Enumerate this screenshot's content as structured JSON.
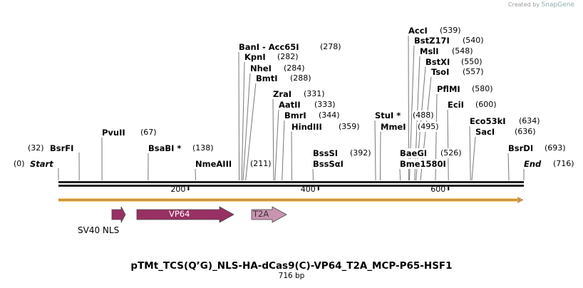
{
  "credit": {
    "prefix": "Created by",
    "brand": "SnapGene"
  },
  "title": "pTMt_TCS(Q’G)_NLS-HA-dCas9(C)-VP64_T2A_MCP-P65-HSF1",
  "size": "716 bp",
  "length": 716,
  "ticks": [
    {
      "pos": 200,
      "label": "200"
    },
    {
      "pos": 400,
      "label": "400"
    },
    {
      "pos": 600,
      "label": "600"
    }
  ],
  "sites": [
    {
      "name": "Start",
      "pos": 0,
      "num": "(0)"
    },
    {
      "name": "BsrFI",
      "pos": 32,
      "num": "(32)"
    },
    {
      "name": "PvuII",
      "pos": 67,
      "num": "(67)"
    },
    {
      "name": "BsaBI *",
      "pos": 138,
      "num": "(138)"
    },
    {
      "name": "NmeAIII",
      "pos": 211,
      "num": "(211)"
    },
    {
      "name": "BanI  - Acc65I",
      "pos": 278,
      "num": "(278)"
    },
    {
      "name": "KpnI",
      "pos": 282,
      "num": "(282)"
    },
    {
      "name": "NheI",
      "pos": 284,
      "num": "(284)"
    },
    {
      "name": "BmtI",
      "pos": 288,
      "num": "(288)"
    },
    {
      "name": "ZraI",
      "pos": 331,
      "num": "(331)"
    },
    {
      "name": "AatII",
      "pos": 333,
      "num": "(333)"
    },
    {
      "name": "BmrI",
      "pos": 344,
      "num": "(344)"
    },
    {
      "name": "HindIII",
      "pos": 359,
      "num": "(359)"
    },
    {
      "name": "BssSI",
      "name2": "BssSαI",
      "pos": 392,
      "num": "(392)"
    },
    {
      "name": "StuI *",
      "pos": 488,
      "num": "(488)"
    },
    {
      "name": "MmeI",
      "pos": 495,
      "num": "(495)"
    },
    {
      "name": "BaeGI",
      "name2": "Bme1580I",
      "pos": 526,
      "num": "(526)"
    },
    {
      "name": "AccI",
      "pos": 539,
      "num": "(539)"
    },
    {
      "name": "BstZ17I",
      "pos": 540,
      "num": "(540)"
    },
    {
      "name": "MslI",
      "pos": 548,
      "num": "(548)"
    },
    {
      "name": "BstXI",
      "pos": 550,
      "num": "(550)"
    },
    {
      "name": "TsoI",
      "pos": 557,
      "num": "(557)"
    },
    {
      "name": "PflMI",
      "pos": 580,
      "num": "(580)"
    },
    {
      "name": "EciI",
      "pos": 600,
      "num": "(600)"
    },
    {
      "name": "Eco53kI",
      "pos": 634,
      "num": "(634)"
    },
    {
      "name": "SacI",
      "pos": 636,
      "num": "(636)"
    },
    {
      "name": "BsrDI",
      "pos": 693,
      "num": "(693)"
    },
    {
      "name": "End",
      "pos": 716,
      "num": "(716)"
    }
  ],
  "features": [
    {
      "name": "SV40 NLS",
      "color": "#983063",
      "label_inside": false
    },
    {
      "name": "VP64",
      "color": "#983063",
      "label_inside": true
    },
    {
      "name": "T2A",
      "color": "#c994b0",
      "label_inside": true
    }
  ],
  "colors": {
    "orf": "#f5c46b",
    "orf_line": "#a06a1e",
    "backbone": "#222222"
  }
}
